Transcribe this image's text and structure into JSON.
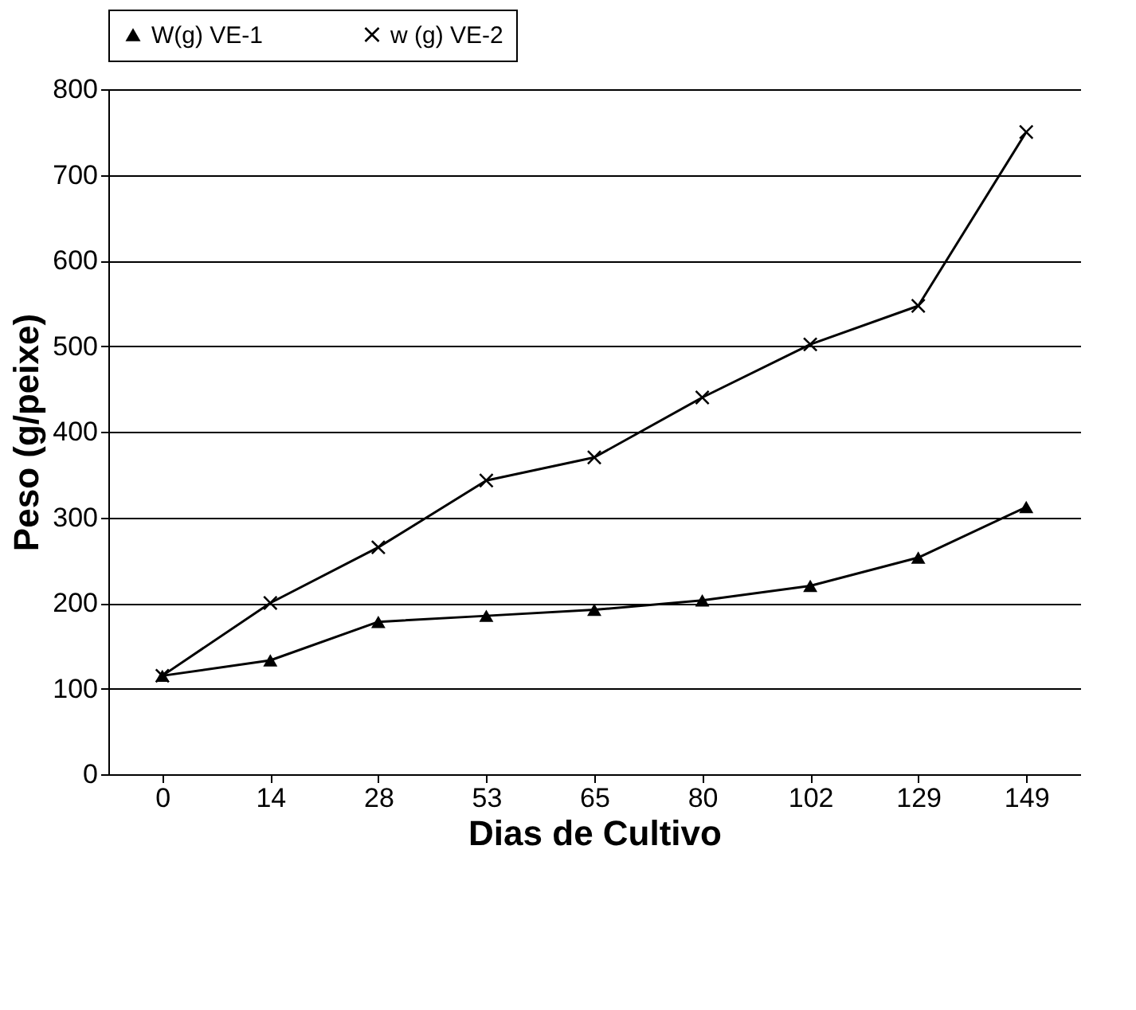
{
  "chart_data": {
    "type": "line",
    "xlabel": "Dias de Cultivo",
    "ylabel": "Peso (g/peixe)",
    "categories": [
      "0",
      "14",
      "28",
      "53",
      "65",
      "80",
      "102",
      "129",
      "149"
    ],
    "series": [
      {
        "name": "W(g) VE-1",
        "color": "#000000",
        "marker": "triangle",
        "values": [
          115,
          133,
          178,
          185,
          192,
          203,
          220,
          253,
          312
        ]
      },
      {
        "name": "w (g) VE-2",
        "color": "#000000",
        "marker": "cross",
        "values": [
          115,
          200,
          265,
          343,
          370,
          440,
          502,
          547,
          750
        ]
      }
    ],
    "ylim": [
      0,
      800
    ],
    "yticks": [
      0,
      100,
      200,
      300,
      400,
      500,
      600,
      700,
      800
    ],
    "grid": "y",
    "legend": "top",
    "line_style": "solid"
  }
}
